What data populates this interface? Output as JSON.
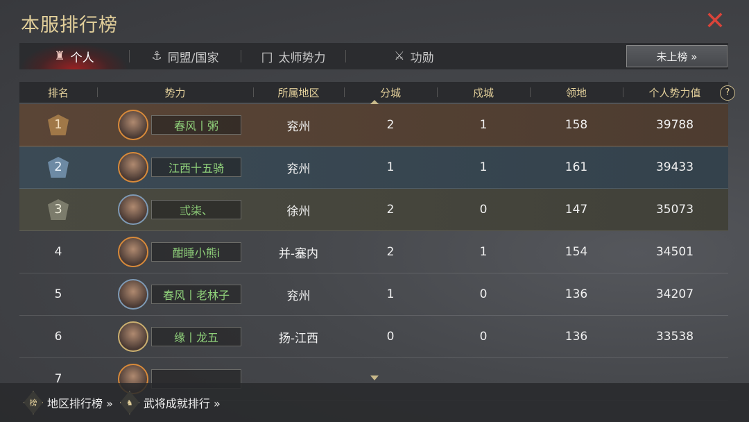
{
  "title": "本服排行榜",
  "close_icon": "close-x-icon",
  "accent": "#e2cf9a",
  "tabs": [
    {
      "label": "个人",
      "icon": "person-helmet-icon",
      "active": true
    },
    {
      "label": "同盟/国家",
      "icon": "alliance-icon",
      "active": false
    },
    {
      "label": "太师势力",
      "icon": "banner-icon",
      "active": false
    },
    {
      "label": "功勋",
      "icon": "crossed-swords-icon",
      "active": false
    }
  ],
  "unranked_button": "未上榜 »",
  "columns": [
    "排名",
    "势力",
    "所属地区",
    "分城",
    "戍城",
    "领地",
    "个人势力值"
  ],
  "help": "?",
  "rows": [
    {
      "rank": "1",
      "name": "春风丨粥",
      "region": "兖州",
      "branch": "2",
      "garrison": "1",
      "territory": "158",
      "power": "39788"
    },
    {
      "rank": "2",
      "name": "江西十五骑",
      "region": "兖州",
      "branch": "1",
      "garrison": "1",
      "territory": "161",
      "power": "39433"
    },
    {
      "rank": "3",
      "name": "弎柒、",
      "region": "徐州",
      "branch": "2",
      "garrison": "0",
      "territory": "147",
      "power": "35073"
    },
    {
      "rank": "4",
      "name": "酣睡小熊i",
      "region": "并-塞内",
      "branch": "2",
      "garrison": "1",
      "territory": "154",
      "power": "34501"
    },
    {
      "rank": "5",
      "name": "春风丨老林子",
      "region": "兖州",
      "branch": "1",
      "garrison": "0",
      "territory": "136",
      "power": "34207"
    },
    {
      "rank": "6",
      "name": "缘丨龙五",
      "region": "扬-江西",
      "branch": "0",
      "garrison": "0",
      "territory": "136",
      "power": "33538"
    },
    {
      "rank": "7"
    }
  ],
  "footer": {
    "region_rank": "地区排行榜 »",
    "general_rank": "武将成就排行 »"
  }
}
